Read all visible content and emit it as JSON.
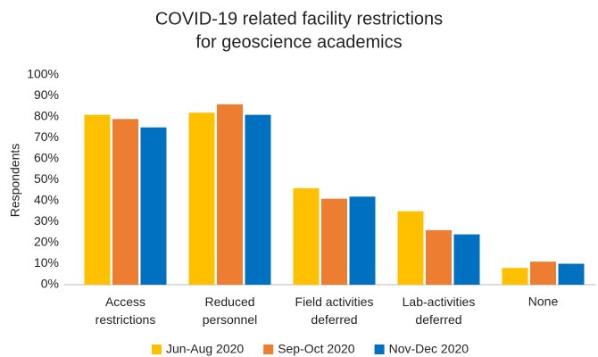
{
  "chart_data": {
    "type": "bar",
    "title": [
      "COVID-19 related facility restrictions",
      "for geoscience academics"
    ],
    "y_label": "Respondents",
    "categories": [
      "Access restrictions",
      "Reduced personnel",
      "Field activities deferred",
      "Lab-activities deferred",
      "None"
    ],
    "series": [
      {
        "name": "Jun-Aug 2020",
        "color": "#ffc000",
        "values": [
          81,
          82,
          46,
          35,
          8
        ]
      },
      {
        "name": "Sep-Oct 2020",
        "color": "#ed7d31",
        "values": [
          79,
          86,
          41,
          26,
          11
        ]
      },
      {
        "name": "Nov-Dec 2020",
        "color": "#0070c0",
        "values": [
          75,
          81,
          42,
          24,
          10
        ]
      }
    ],
    "ylim": [
      0,
      100
    ],
    "yticks": [
      {
        "value": 0,
        "label": "0%"
      },
      {
        "value": 10,
        "label": "10%"
      },
      {
        "value": 20,
        "label": "20%"
      },
      {
        "value": 30,
        "label": "30%"
      },
      {
        "value": 40,
        "label": "40%"
      },
      {
        "value": 50,
        "label": "50%"
      },
      {
        "value": 60,
        "label": "60%"
      },
      {
        "value": 70,
        "label": "70%"
      },
      {
        "value": 80,
        "label": "80%"
      },
      {
        "value": 90,
        "label": "90%"
      },
      {
        "value": 100,
        "label": "100%"
      }
    ],
    "grid": false,
    "legend": "bottom"
  }
}
